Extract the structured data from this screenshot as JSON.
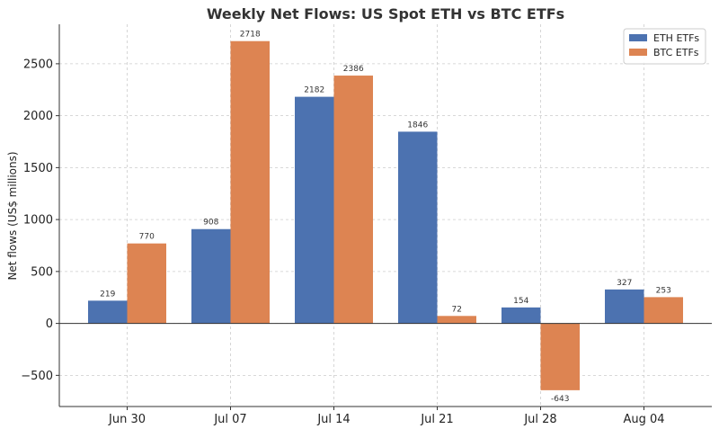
{
  "chart_data": {
    "type": "bar",
    "title": "Weekly Net Flows: US Spot ETH vs BTC ETFs",
    "xlabel": "",
    "ylabel": "Net flows (US$ millions)",
    "categories": [
      "Jun 30",
      "Jul 07",
      "Jul 14",
      "Jul 21",
      "Jul 28",
      "Aug 04"
    ],
    "series": [
      {
        "name": "ETH ETFs",
        "color": "#4c72b0",
        "values": [
          219,
          908,
          2182,
          1846,
          154,
          327
        ]
      },
      {
        "name": "BTC ETFs",
        "color": "#dd8452",
        "values": [
          770,
          2718,
          2386,
          72,
          -643,
          253
        ]
      }
    ],
    "ylim": [
      -800,
      2880
    ],
    "yticks": [
      -500,
      0,
      500,
      1000,
      1500,
      2000,
      2500
    ],
    "ytick_labels": [
      "−500",
      "0",
      "500",
      "1000",
      "1500",
      "2000",
      "2500"
    ],
    "grid": true,
    "legend_position": "top-right"
  }
}
